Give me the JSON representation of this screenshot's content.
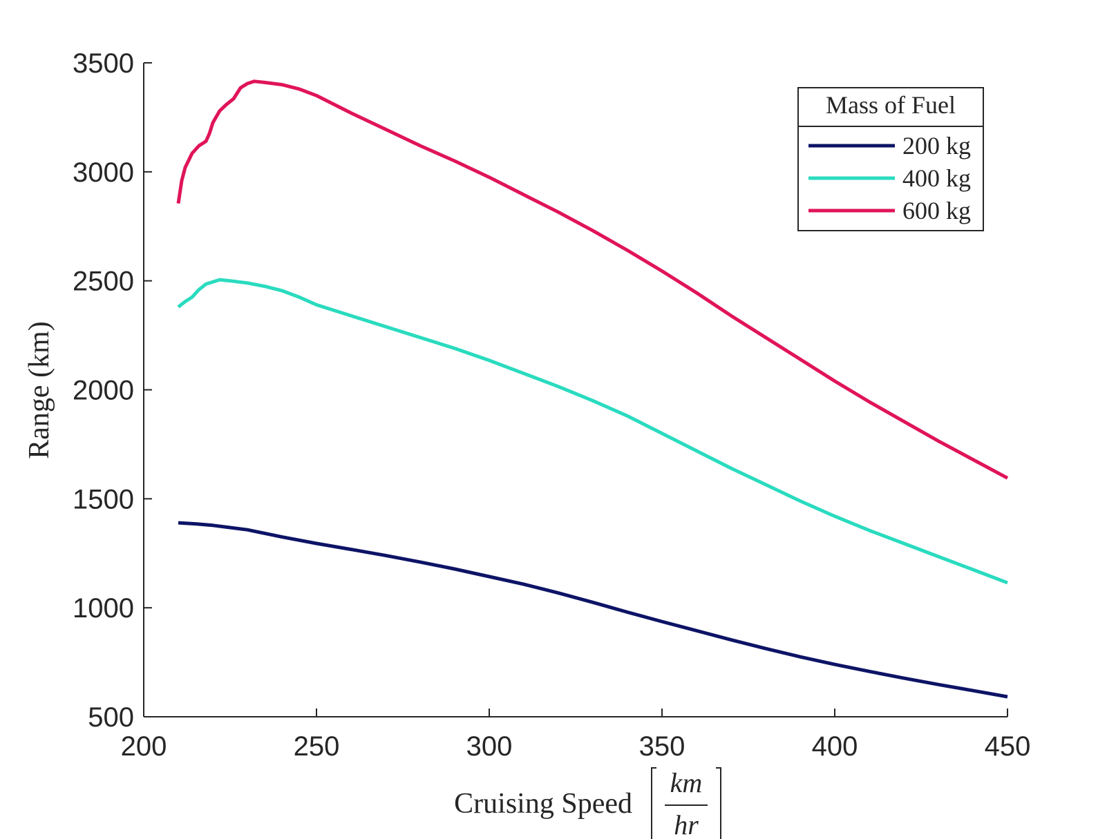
{
  "chart_data": {
    "type": "line",
    "title": "",
    "xlabel": "Cruising Speed",
    "xlabel_unit": {
      "numerator": "km",
      "denominator": "hr"
    },
    "ylabel": "Range (km)",
    "xlim": [
      200,
      450
    ],
    "ylim": [
      500,
      3500
    ],
    "xticks": [
      "200",
      "250",
      "300",
      "350",
      "400",
      "450"
    ],
    "yticks": [
      "500",
      "1000",
      "1500",
      "2000",
      "2500",
      "3000",
      "3500"
    ],
    "grid": false,
    "legend": {
      "title": "Mass of Fuel",
      "placement": "top-right"
    },
    "series": [
      {
        "name": "200 kg",
        "color": "#0d1466",
        "x": [
          210,
          215,
          220,
          225,
          230,
          240,
          250,
          260,
          270,
          280,
          290,
          300,
          310,
          320,
          330,
          340,
          350,
          360,
          370,
          380,
          390,
          400,
          410,
          420,
          430,
          440,
          450
        ],
        "y": [
          1390,
          1385,
          1378,
          1368,
          1358,
          1325,
          1295,
          1268,
          1240,
          1210,
          1178,
          1143,
          1108,
          1068,
          1025,
          980,
          937,
          895,
          853,
          813,
          775,
          740,
          708,
          677,
          648,
          620,
          592
        ]
      },
      {
        "name": "400 kg",
        "color": "#2adbbf",
        "x": [
          210,
          212,
          214,
          216,
          218,
          220,
          222,
          225,
          230,
          235,
          240,
          245,
          250,
          260,
          270,
          280,
          290,
          300,
          310,
          320,
          330,
          340,
          350,
          360,
          370,
          380,
          390,
          400,
          410,
          420,
          430,
          440,
          450
        ],
        "y": [
          2380,
          2405,
          2425,
          2460,
          2485,
          2495,
          2505,
          2500,
          2490,
          2475,
          2455,
          2425,
          2390,
          2340,
          2290,
          2240,
          2190,
          2135,
          2075,
          2015,
          1950,
          1880,
          1800,
          1720,
          1640,
          1565,
          1490,
          1420,
          1355,
          1295,
          1235,
          1175,
          1115
        ]
      },
      {
        "name": "600 kg",
        "color": "#e0145a",
        "x": [
          210,
          211,
          212,
          214,
          216,
          218,
          219,
          220,
          222,
          224,
          226,
          228,
          230,
          232,
          235,
          240,
          245,
          250,
          260,
          270,
          280,
          290,
          300,
          310,
          320,
          330,
          340,
          350,
          360,
          370,
          380,
          390,
          400,
          410,
          420,
          430,
          440,
          450
        ],
        "y": [
          2855,
          2960,
          3020,
          3085,
          3120,
          3140,
          3175,
          3225,
          3280,
          3310,
          3335,
          3385,
          3405,
          3415,
          3410,
          3400,
          3380,
          3350,
          3270,
          3195,
          3120,
          3050,
          2975,
          2895,
          2815,
          2730,
          2640,
          2545,
          2445,
          2340,
          2240,
          2140,
          2040,
          1945,
          1855,
          1765,
          1680,
          1595
        ]
      }
    ]
  }
}
